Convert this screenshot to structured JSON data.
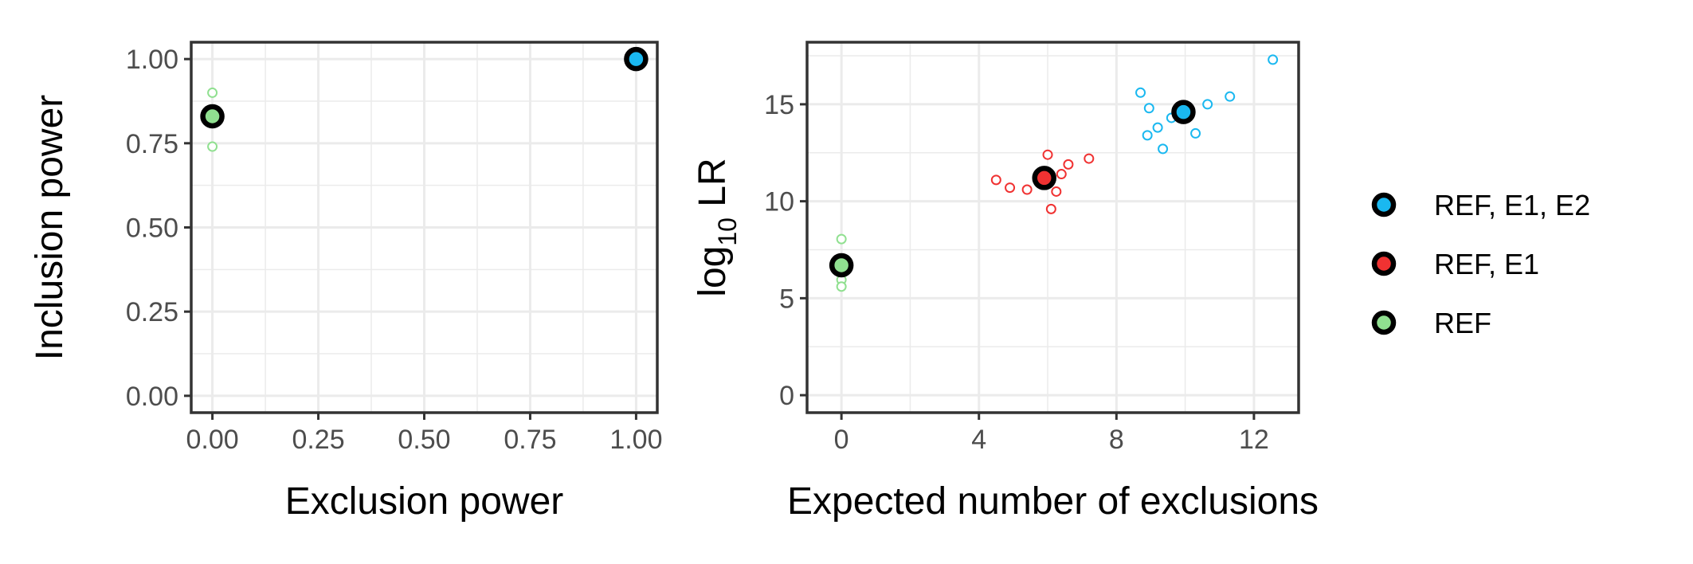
{
  "chart_data": [
    {
      "type": "scatter",
      "xlabel": "Exclusion power",
      "ylabel": "Inclusion power",
      "xlim": [
        -0.05,
        1.05
      ],
      "ylim": [
        -0.05,
        1.05
      ],
      "xticks": [
        0,
        0.25,
        0.5,
        0.75,
        1
      ],
      "xtick_labels": [
        "0.00",
        "0.25",
        "0.50",
        "0.75",
        "1.00"
      ],
      "yticks": [
        0,
        0.25,
        0.5,
        0.75,
        1
      ],
      "ytick_labels": [
        "0.00",
        "0.25",
        "0.50",
        "0.75",
        "1.00"
      ],
      "grid": true,
      "series": [
        {
          "name": "REF, E1, E2",
          "color": "#1ab8f0",
          "mean": {
            "x": 1.0,
            "y": 1.0
          },
          "points": [
            {
              "x": 1.0,
              "y": 1.0
            }
          ]
        },
        {
          "name": "REF, E1",
          "color": "#f03232",
          "mean": null,
          "points": []
        },
        {
          "name": "REF",
          "color": "#90e090",
          "mean": {
            "x": 0.0,
            "y": 0.83
          },
          "points": [
            {
              "x": 0.0,
              "y": 0.9
            },
            {
              "x": 0.0,
              "y": 0.74
            },
            {
              "x": 0.0,
              "y": 0.83
            }
          ]
        }
      ]
    },
    {
      "type": "scatter",
      "xlabel": "Expected number of exclusions",
      "ylabel_main": "log",
      "ylabel_sub": "10",
      "ylabel_tail": " LR",
      "xlim": [
        -1,
        13.3
      ],
      "ylim": [
        -0.9,
        18.2
      ],
      "xticks": [
        0,
        4,
        8,
        12
      ],
      "xtick_labels": [
        "0",
        "4",
        "8",
        "12"
      ],
      "yticks": [
        0,
        5,
        10,
        15
      ],
      "ytick_labels": [
        "0",
        "5",
        "10",
        "15"
      ],
      "grid": true,
      "series": [
        {
          "name": "REF, E1, E2",
          "color": "#1ab8f0",
          "mean": {
            "x": 9.95,
            "y": 14.6
          },
          "points": [
            {
              "x": 8.7,
              "y": 15.6
            },
            {
              "x": 8.95,
              "y": 14.8
            },
            {
              "x": 9.6,
              "y": 14.3
            },
            {
              "x": 9.2,
              "y": 13.8
            },
            {
              "x": 8.9,
              "y": 13.4
            },
            {
              "x": 9.35,
              "y": 12.7
            },
            {
              "x": 10.3,
              "y": 13.5
            },
            {
              "x": 10.65,
              "y": 15.0
            },
            {
              "x": 11.3,
              "y": 15.4
            },
            {
              "x": 12.55,
              "y": 17.3
            }
          ]
        },
        {
          "name": "REF, E1",
          "color": "#f03232",
          "mean": {
            "x": 5.9,
            "y": 11.2
          },
          "points": [
            {
              "x": 4.5,
              "y": 11.1
            },
            {
              "x": 4.9,
              "y": 10.7
            },
            {
              "x": 5.4,
              "y": 10.6
            },
            {
              "x": 6.0,
              "y": 12.4
            },
            {
              "x": 6.4,
              "y": 11.4
            },
            {
              "x": 6.6,
              "y": 11.9
            },
            {
              "x": 7.2,
              "y": 12.2
            },
            {
              "x": 6.25,
              "y": 10.5
            },
            {
              "x": 6.1,
              "y": 9.6
            }
          ]
        },
        {
          "name": "REF",
          "color": "#90e090",
          "mean": {
            "x": 0.0,
            "y": 6.7
          },
          "points": [
            {
              "x": 0.0,
              "y": 8.05
            },
            {
              "x": 0.0,
              "y": 6.95
            },
            {
              "x": 0.0,
              "y": 5.95
            },
            {
              "x": 0.0,
              "y": 5.6
            }
          ]
        }
      ]
    }
  ],
  "legend": {
    "items": [
      {
        "label": "REF, E1, E2",
        "color": "#1ab8f0"
      },
      {
        "label": "REF, E1",
        "color": "#f03232"
      },
      {
        "label": "REF",
        "color": "#90e090"
      }
    ]
  }
}
